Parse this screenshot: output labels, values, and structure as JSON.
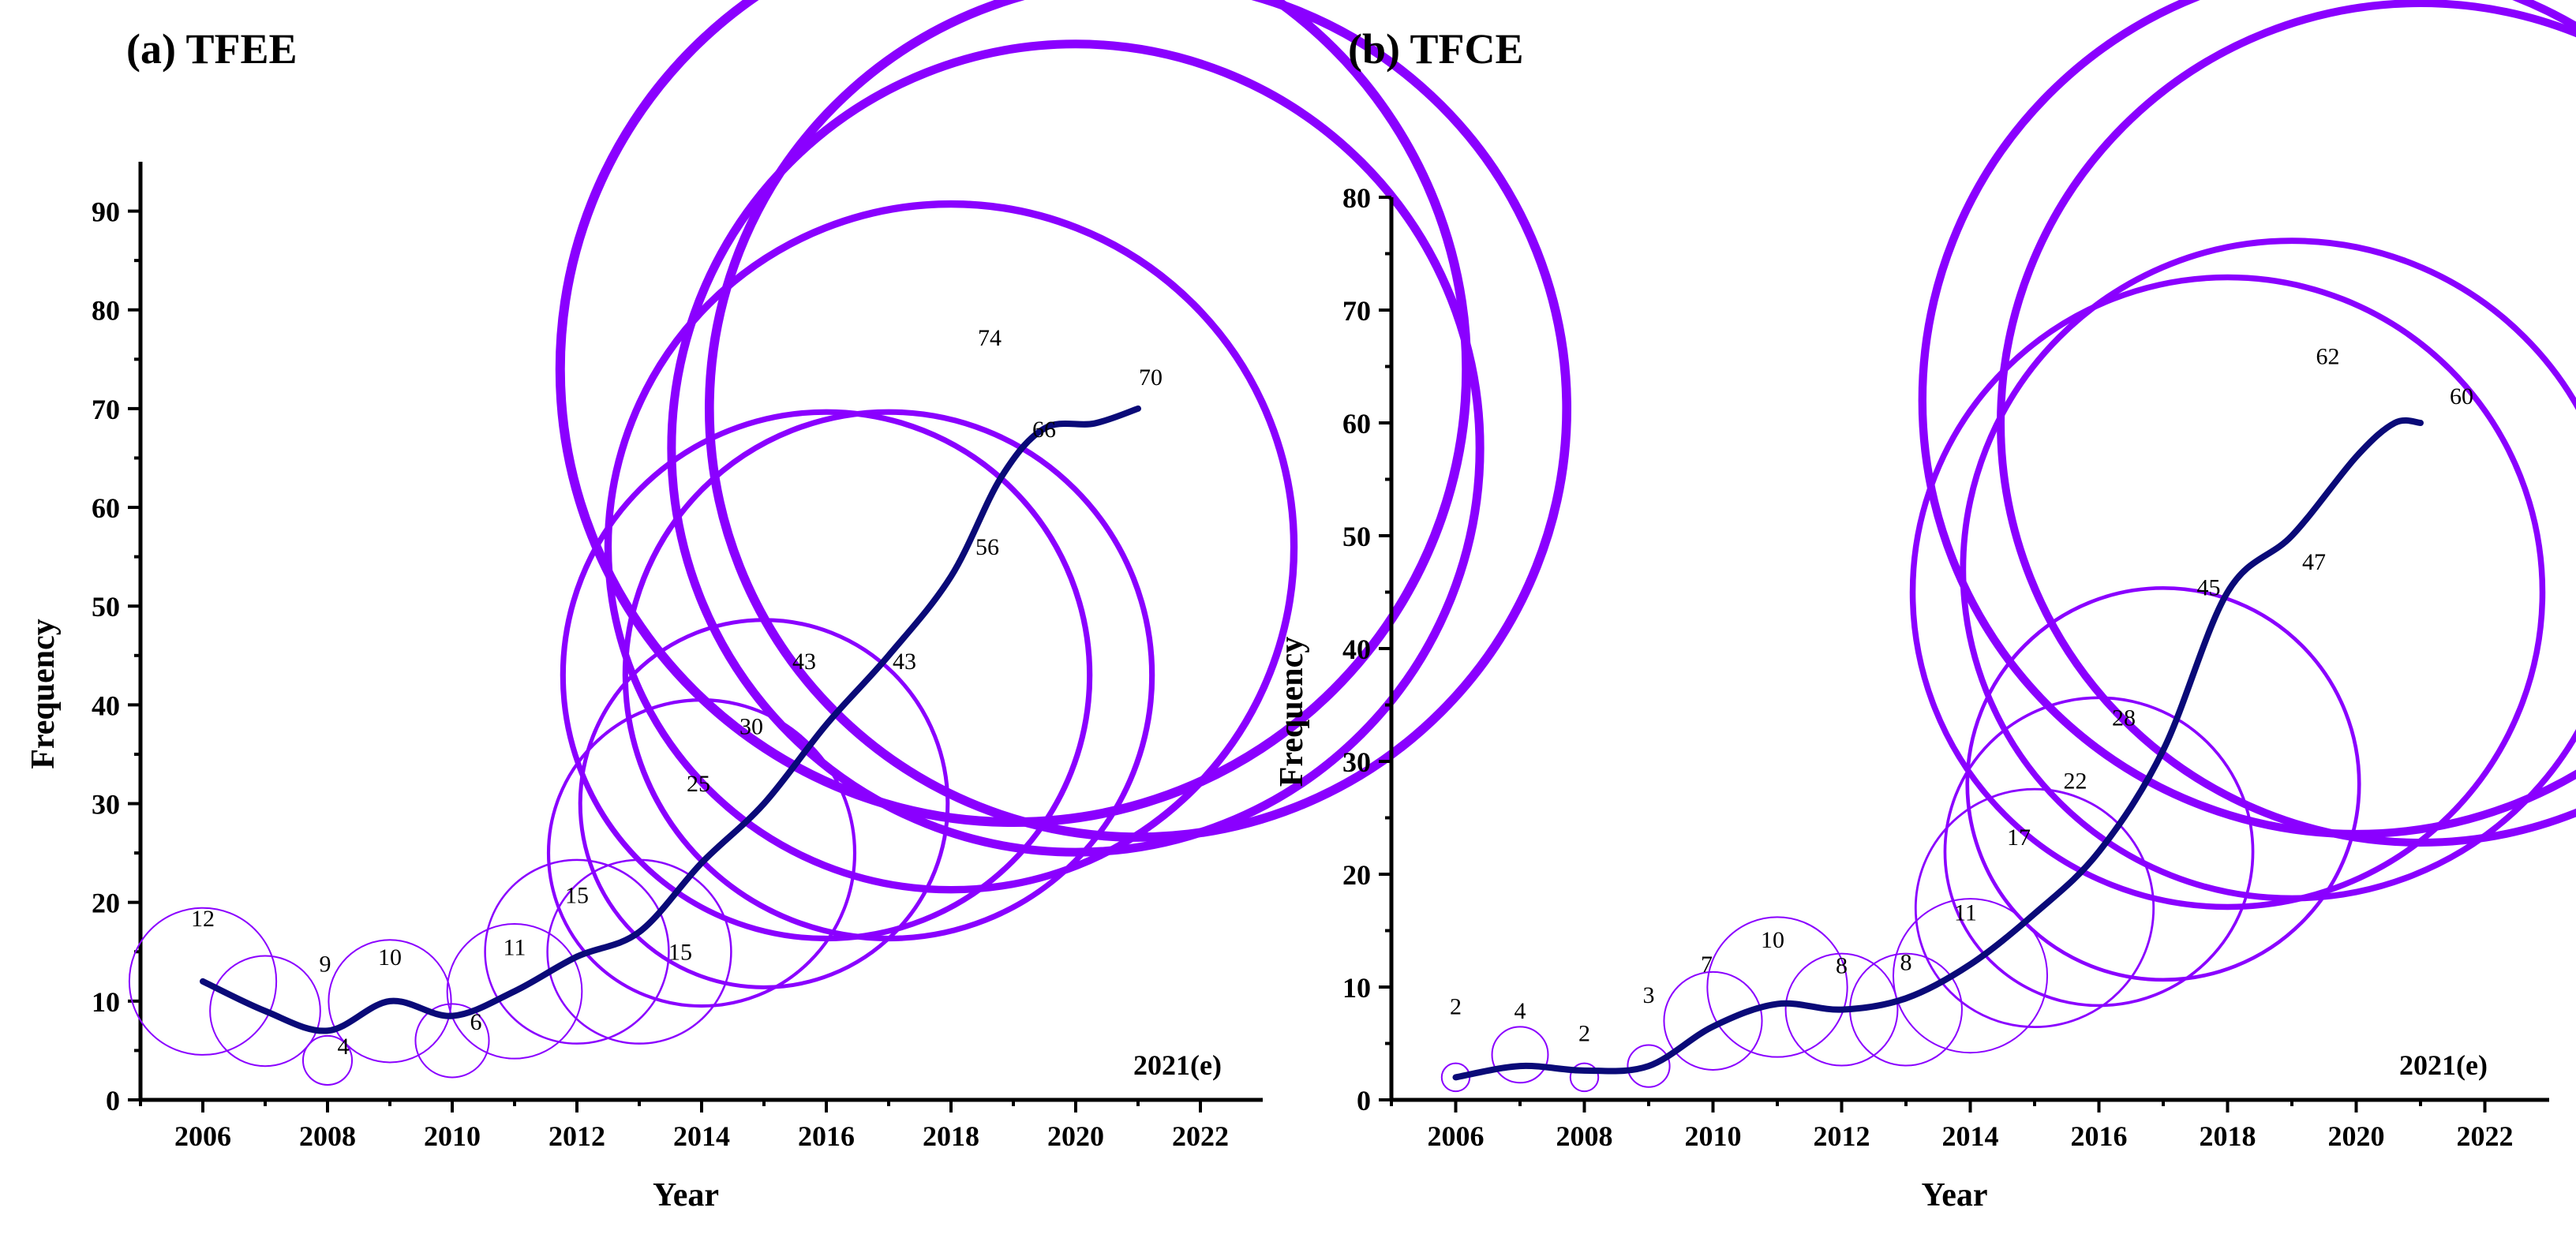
{
  "colors": {
    "bubble": "#8a00ff",
    "trend": "#0a0a78"
  },
  "chart_data": [
    {
      "type": "scatter",
      "title": "(a) TFEE",
      "xlabel": "Year",
      "ylabel": "Frequency",
      "xlim": [
        2005,
        2023
      ],
      "ylim": [
        0,
        95
      ],
      "xticks": [
        2006,
        2008,
        2010,
        2012,
        2014,
        2016,
        2018,
        2020,
        2022
      ],
      "yticks": [
        0,
        10,
        20,
        30,
        40,
        50,
        60,
        70,
        80,
        90
      ],
      "annotation": "2021(e)",
      "grid": false,
      "x": [
        2006,
        2007,
        2008,
        2009,
        2010,
        2011,
        2012,
        2013,
        2014,
        2015,
        2016,
        2017,
        2018,
        2019,
        2020,
        2021
      ],
      "values": [
        12,
        9,
        4,
        10,
        6,
        11,
        15,
        15,
        25,
        30,
        43,
        43,
        56,
        74,
        66,
        70
      ],
      "trend": [
        [
          2006,
          12
        ],
        [
          2007,
          9
        ],
        [
          2008,
          7
        ],
        [
          2009,
          10
        ],
        [
          2010,
          8.5
        ],
        [
          2011,
          11
        ],
        [
          2012,
          14.5
        ],
        [
          2013,
          17
        ],
        [
          2014,
          24
        ],
        [
          2015,
          30
        ],
        [
          2016,
          38
        ],
        [
          2017,
          45
        ],
        [
          2018,
          53
        ],
        [
          2018.8,
          63
        ],
        [
          2019.5,
          68
        ],
        [
          2020.3,
          68.5
        ],
        [
          2021,
          70
        ]
      ]
    },
    {
      "type": "scatter",
      "title": "(b) TFCE",
      "xlabel": "Year",
      "ylabel": "Frequency",
      "xlim": [
        2005,
        2023
      ],
      "ylim": [
        0,
        80
      ],
      "xticks": [
        2006,
        2008,
        2010,
        2012,
        2014,
        2016,
        2018,
        2020,
        2022
      ],
      "yticks": [
        0,
        10,
        20,
        30,
        40,
        50,
        60,
        70,
        80
      ],
      "annotation": "2021(e)",
      "grid": false,
      "x": [
        2006,
        2007,
        2008,
        2009,
        2010,
        2011,
        2012,
        2013,
        2014,
        2015,
        2016,
        2017,
        2018,
        2019,
        2020,
        2021
      ],
      "values": [
        2,
        4,
        2,
        3,
        7,
        10,
        8,
        8,
        11,
        17,
        22,
        28,
        45,
        47,
        62,
        60
      ],
      "trend": [
        [
          2006,
          2
        ],
        [
          2007,
          3
        ],
        [
          2008,
          2.6
        ],
        [
          2009,
          3
        ],
        [
          2010,
          6.5
        ],
        [
          2011,
          8.5
        ],
        [
          2012,
          8
        ],
        [
          2013,
          9
        ],
        [
          2014,
          12
        ],
        [
          2015,
          16.5
        ],
        [
          2016,
          22
        ],
        [
          2017,
          31
        ],
        [
          2018,
          45
        ],
        [
          2019,
          50
        ],
        [
          2020,
          57
        ],
        [
          2020.6,
          60
        ],
        [
          2021,
          60
        ]
      ]
    }
  ]
}
